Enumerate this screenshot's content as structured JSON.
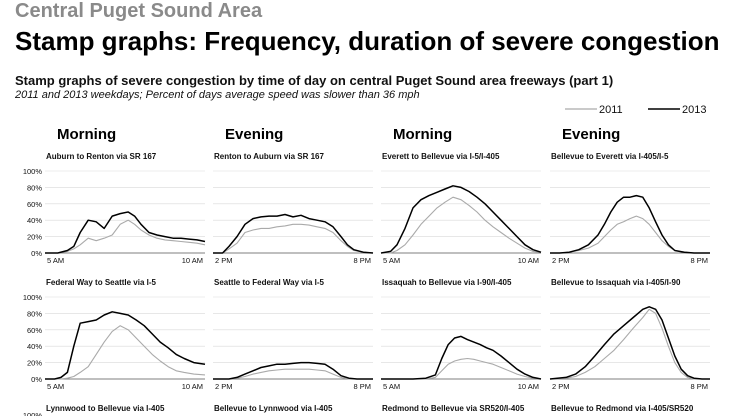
{
  "header": {
    "area": "Central Puget Sound Area",
    "title": "Stamp graphs: Frequency, duration of severe congestion",
    "subtitle": "Stamp graphs of severe congestion by time of day on central Puget Sound area freeways (part 1)",
    "note": "2011 and 2013 weekdays; Percent of days average speed was slower than 36 mph"
  },
  "legend": {
    "series": [
      {
        "name": "2011",
        "color": "#aaaaaa"
      },
      {
        "name": "2013",
        "color": "#000000"
      }
    ]
  },
  "column_headers": [
    "Morning",
    "Evening",
    "Morning",
    "Evening"
  ],
  "y_ticks": [
    "100%",
    "80%",
    "60%",
    "40%",
    "20%",
    "0%"
  ],
  "chart_data": [
    {
      "type": "line",
      "title": "Auburn to Renton via SR 167",
      "x_start": "5 AM",
      "x_end": "10 AM",
      "ylim": [
        0,
        100
      ],
      "x": [
        0,
        0.08,
        0.14,
        0.18,
        0.22,
        0.27,
        0.32,
        0.37,
        0.42,
        0.47,
        0.52,
        0.56,
        0.6,
        0.65,
        0.7,
        0.75,
        0.8,
        0.85,
        0.9,
        0.95,
        1.0
      ],
      "series": [
        {
          "name": "2011",
          "values": [
            0,
            0,
            2,
            5,
            10,
            18,
            15,
            18,
            22,
            35,
            40,
            35,
            28,
            22,
            18,
            16,
            15,
            14,
            13,
            12,
            10
          ]
        },
        {
          "name": "2013",
          "values": [
            0,
            0,
            3,
            8,
            25,
            40,
            38,
            30,
            45,
            48,
            50,
            45,
            35,
            25,
            22,
            20,
            18,
            18,
            17,
            16,
            14
          ]
        }
      ]
    },
    {
      "type": "line",
      "title": "Renton to Auburn via SR 167",
      "x_start": "2 PM",
      "x_end": "8 PM",
      "ylim": [
        0,
        100
      ],
      "x": [
        0,
        0.06,
        0.1,
        0.15,
        0.2,
        0.25,
        0.3,
        0.35,
        0.4,
        0.45,
        0.5,
        0.55,
        0.6,
        0.65,
        0.7,
        0.75,
        0.8,
        0.84,
        0.88,
        0.94,
        1.0
      ],
      "series": [
        {
          "name": "2011",
          "values": [
            0,
            0,
            5,
            12,
            25,
            28,
            30,
            30,
            32,
            33,
            35,
            35,
            34,
            32,
            30,
            25,
            15,
            8,
            3,
            1,
            0
          ]
        },
        {
          "name": "2013",
          "values": [
            0,
            0,
            8,
            20,
            35,
            42,
            44,
            45,
            45,
            47,
            44,
            46,
            42,
            40,
            38,
            32,
            20,
            10,
            4,
            1,
            0
          ]
        }
      ]
    },
    {
      "type": "line",
      "title": "Everett to Bellevue via I-5/I-405",
      "x_start": "5 AM",
      "x_end": "10 AM",
      "ylim": [
        0,
        100
      ],
      "x": [
        0,
        0.06,
        0.1,
        0.15,
        0.2,
        0.25,
        0.3,
        0.35,
        0.4,
        0.45,
        0.5,
        0.55,
        0.6,
        0.65,
        0.7,
        0.75,
        0.8,
        0.85,
        0.9,
        0.95,
        1.0
      ],
      "series": [
        {
          "name": "2011",
          "values": [
            0,
            0,
            3,
            10,
            22,
            35,
            45,
            55,
            62,
            68,
            65,
            58,
            50,
            40,
            32,
            25,
            18,
            12,
            6,
            2,
            1
          ]
        },
        {
          "name": "2013",
          "values": [
            0,
            2,
            10,
            30,
            55,
            65,
            70,
            74,
            78,
            82,
            80,
            75,
            68,
            60,
            50,
            40,
            30,
            20,
            10,
            4,
            1
          ]
        }
      ]
    },
    {
      "type": "line",
      "title": "Bellevue to Everett via I-405/I-5",
      "x_start": "2 PM",
      "x_end": "8 PM",
      "ylim": [
        0,
        100
      ],
      "x": [
        0,
        0.06,
        0.12,
        0.18,
        0.24,
        0.3,
        0.34,
        0.38,
        0.42,
        0.46,
        0.5,
        0.54,
        0.58,
        0.62,
        0.66,
        0.7,
        0.74,
        0.78,
        0.84,
        0.9,
        1.0
      ],
      "series": [
        {
          "name": "2011",
          "values": [
            0,
            0,
            1,
            3,
            6,
            12,
            20,
            28,
            35,
            38,
            42,
            45,
            42,
            35,
            25,
            15,
            8,
            3,
            1,
            0,
            0
          ]
        },
        {
          "name": "2013",
          "values": [
            0,
            0,
            1,
            4,
            10,
            22,
            35,
            50,
            62,
            68,
            68,
            70,
            68,
            55,
            38,
            22,
            10,
            3,
            1,
            0,
            0
          ]
        }
      ]
    },
    {
      "type": "line",
      "title": "Federal Way to Seattle via I-5",
      "x_start": "5 AM",
      "x_end": "10 AM",
      "ylim": [
        0,
        100
      ],
      "x": [
        0,
        0.06,
        0.1,
        0.14,
        0.18,
        0.22,
        0.27,
        0.32,
        0.37,
        0.42,
        0.47,
        0.52,
        0.57,
        0.62,
        0.67,
        0.72,
        0.77,
        0.82,
        0.87,
        0.93,
        1.0
      ],
      "series": [
        {
          "name": "2011",
          "values": [
            0,
            0,
            0,
            1,
            3,
            8,
            15,
            30,
            45,
            58,
            65,
            60,
            50,
            40,
            30,
            22,
            15,
            10,
            8,
            6,
            5
          ]
        },
        {
          "name": "2013",
          "values": [
            0,
            0,
            2,
            8,
            40,
            68,
            70,
            72,
            78,
            82,
            80,
            78,
            72,
            65,
            55,
            45,
            38,
            30,
            25,
            20,
            18
          ]
        }
      ]
    },
    {
      "type": "line",
      "title": "Seattle to Federal Way via I-5",
      "x_start": "2 PM",
      "x_end": "8 PM",
      "ylim": [
        0,
        100
      ],
      "x": [
        0,
        0.1,
        0.15,
        0.2,
        0.25,
        0.3,
        0.35,
        0.4,
        0.45,
        0.5,
        0.55,
        0.6,
        0.65,
        0.7,
        0.75,
        0.8,
        0.85,
        0.9,
        1.0
      ],
      "series": [
        {
          "name": "2011",
          "values": [
            0,
            0,
            1,
            3,
            6,
            8,
            10,
            11,
            12,
            12,
            12,
            12,
            11,
            10,
            6,
            2,
            0,
            0,
            0
          ]
        },
        {
          "name": "2013",
          "values": [
            0,
            0,
            2,
            6,
            10,
            14,
            16,
            18,
            18,
            19,
            20,
            20,
            19,
            18,
            12,
            4,
            1,
            0,
            0
          ]
        }
      ]
    },
    {
      "type": "line",
      "title": "Issaquah to Bellevue via I-90/I-405",
      "x_start": "5 AM",
      "x_end": "10 AM",
      "ylim": [
        0,
        100
      ],
      "x": [
        0,
        0.1,
        0.2,
        0.28,
        0.34,
        0.38,
        0.42,
        0.46,
        0.5,
        0.54,
        0.58,
        0.62,
        0.66,
        0.7,
        0.75,
        0.8,
        0.85,
        0.9,
        0.95,
        1.0
      ],
      "series": [
        {
          "name": "2011",
          "values": [
            0,
            0,
            0,
            0,
            2,
            10,
            18,
            22,
            24,
            25,
            24,
            22,
            20,
            18,
            14,
            10,
            6,
            3,
            1,
            0
          ]
        },
        {
          "name": "2013",
          "values": [
            0,
            0,
            0,
            1,
            5,
            25,
            42,
            50,
            52,
            48,
            45,
            42,
            38,
            35,
            28,
            20,
            12,
            6,
            2,
            0
          ]
        }
      ]
    },
    {
      "type": "line",
      "title": "Bellevue to Issaquah via I-405/I-90",
      "x_start": "2 PM",
      "x_end": "8 PM",
      "ylim": [
        0,
        100
      ],
      "x": [
        0,
        0.1,
        0.16,
        0.22,
        0.28,
        0.34,
        0.4,
        0.46,
        0.52,
        0.58,
        0.62,
        0.66,
        0.7,
        0.74,
        0.78,
        0.82,
        0.86,
        0.9,
        0.95,
        1.0
      ],
      "series": [
        {
          "name": "2011",
          "values": [
            0,
            1,
            3,
            8,
            15,
            25,
            35,
            48,
            62,
            75,
            85,
            80,
            62,
            40,
            20,
            8,
            2,
            0,
            0,
            0
          ]
        },
        {
          "name": "2013",
          "values": [
            0,
            2,
            6,
            15,
            28,
            42,
            55,
            65,
            75,
            85,
            88,
            85,
            72,
            50,
            28,
            12,
            4,
            1,
            0,
            0
          ]
        }
      ]
    }
  ]
}
